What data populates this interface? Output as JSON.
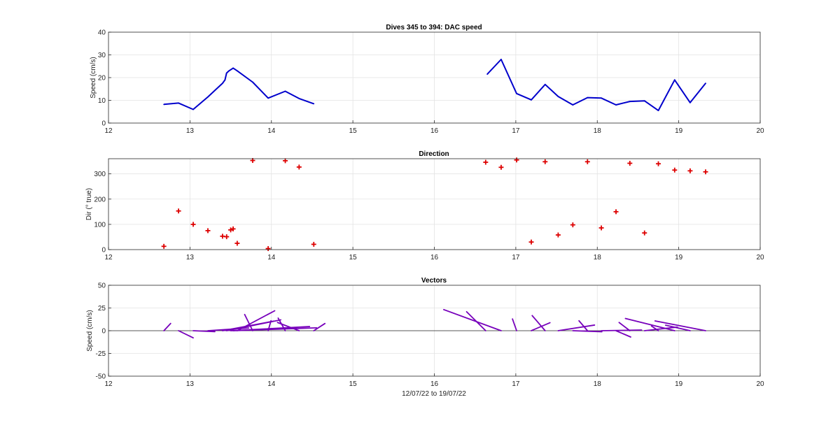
{
  "figure_title": "Dives 345 to 394: DAC speed",
  "colors": {
    "speed": "#0000cc",
    "direction": "#dd0000",
    "vectors": "#7700bb",
    "grid": "#e3e3e3",
    "axis": "#262626"
  },
  "chart_data": [
    {
      "type": "line",
      "title": "Dives 345 to 394: DAC speed",
      "xlabel": "",
      "ylabel": "Speed (cm/s)",
      "xlim": [
        12,
        20
      ],
      "ylim": [
        0,
        40
      ],
      "xticks": [
        12,
        13,
        14,
        15,
        16,
        17,
        18,
        19,
        20
      ],
      "yticks": [
        0,
        10,
        20,
        30,
        40
      ],
      "grid": true,
      "series": [
        {
          "segments": [
            {
              "x": [
                12.68,
                12.86,
                13.04,
                13.22,
                13.4,
                13.43,
                13.45,
                13.48,
                13.53,
                13.58,
                13.77,
                13.96,
                14.17,
                14.34,
                14.52
              ],
              "y": [
                8.2,
                8.8,
                6.0,
                11.5,
                17.5,
                19.0,
                22.0,
                23.0,
                24.2,
                23.0,
                18.0,
                11.0,
                14.0,
                10.8,
                8.5
              ]
            },
            {
              "x": [
                16.65,
                16.82,
                17.01,
                17.19,
                17.36,
                17.52,
                17.7,
                17.88,
                18.05,
                18.23,
                18.4,
                18.58,
                18.75,
                18.95,
                19.14,
                19.33
              ],
              "y": [
                21.5,
                28.0,
                13.0,
                10.2,
                17.0,
                11.7,
                8.0,
                11.2,
                11.0,
                8.0,
                9.5,
                9.8,
                5.5,
                19.0,
                9.0,
                17.5
              ]
            }
          ]
        }
      ]
    },
    {
      "type": "scatter",
      "title": "Direction",
      "xlabel": "",
      "ylabel": "Dir (° true)",
      "xlim": [
        12,
        20
      ],
      "ylim": [
        0,
        360
      ],
      "xticks": [
        12,
        13,
        14,
        15,
        16,
        17,
        18,
        19,
        20
      ],
      "yticks": [
        0,
        100,
        200,
        300
      ],
      "grid": true,
      "marker": "+",
      "series": [
        {
          "x": [
            12.68,
            12.86,
            13.04,
            13.22,
            13.4,
            13.45,
            13.5,
            13.53,
            13.58,
            13.77,
            13.96,
            14.17,
            14.34,
            14.52,
            16.63,
            16.82,
            17.01,
            17.19,
            17.36,
            17.52,
            17.7,
            17.88,
            18.05,
            18.23,
            18.4,
            18.58,
            18.75,
            18.95,
            19.14,
            19.33
          ],
          "y": [
            13,
            153,
            100,
            75,
            53,
            51,
            78,
            82,
            25,
            353,
            4,
            352,
            327,
            21,
            346,
            326,
            355,
            30,
            348,
            58,
            98,
            348,
            86,
            150,
            342,
            66,
            340,
            315,
            312,
            308
          ]
        }
      ]
    },
    {
      "type": "vector",
      "title": "Vectors",
      "xlabel": "12/07/22 to 19/07/22",
      "ylabel": "Speed (cm/s)",
      "xlim": [
        12,
        20
      ],
      "ylim": [
        -50,
        50
      ],
      "xticks": [
        12,
        13,
        14,
        15,
        16,
        17,
        18,
        19,
        20
      ],
      "yticks": [
        -50,
        -25,
        0,
        25,
        50
      ],
      "grid": true,
      "series": [
        {
          "x": [
            12.68,
            12.86,
            13.04,
            13.22,
            13.4,
            13.45,
            13.5,
            13.53,
            13.58,
            13.77,
            13.96,
            14.17,
            14.34,
            14.52,
            16.63,
            16.82,
            17.01,
            17.19,
            17.36,
            17.52,
            17.7,
            17.88,
            18.05,
            18.23,
            18.4,
            18.58,
            18.75,
            18.95,
            19.14,
            19.33
          ],
          "speed": [
            8.2,
            8.8,
            6.0,
            11.5,
            17.5,
            19.0,
            22.0,
            23.0,
            24.2,
            18.0,
            11.0,
            14.0,
            10.8,
            8.5,
            21.5,
            28.0,
            13.0,
            10.2,
            17.0,
            11.7,
            8.0,
            11.2,
            11.0,
            8.0,
            9.5,
            9.8,
            5.5,
            19.0,
            9.0,
            17.5
          ],
          "direction": [
            13,
            153,
            100,
            75,
            53,
            51,
            78,
            82,
            25,
            353,
            4,
            352,
            327,
            21,
            346,
            326,
            355,
            30,
            348,
            58,
            98,
            348,
            86,
            150,
            342,
            66,
            340,
            315,
            312,
            308
          ]
        }
      ]
    }
  ]
}
